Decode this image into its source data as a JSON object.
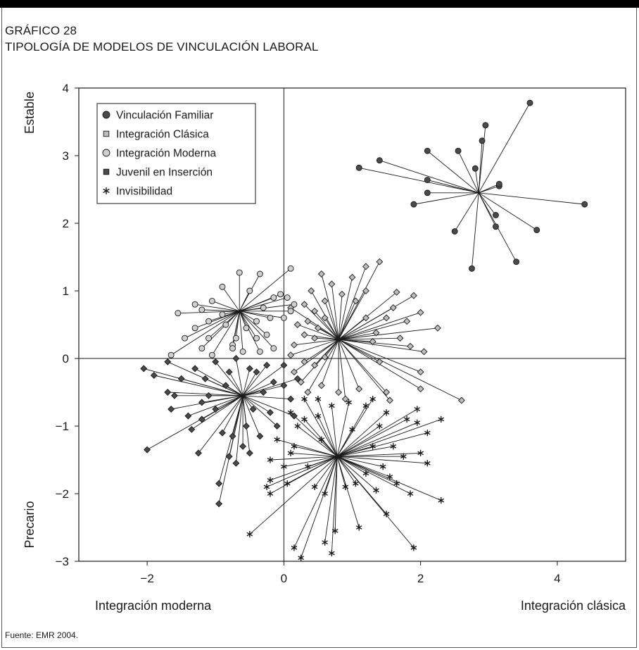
{
  "header": {
    "label": "GRÁFICO 28",
    "title": "TIPOLOGÍA DE MODELOS DE VINCULACIÓN LABORAL"
  },
  "source": "Fuente: EMR 2004.",
  "chart_data": {
    "type": "scatter",
    "title": "TIPOLOGÍA DE MODELOS DE VINCULACIÓN LABORAL",
    "xlabel_left": "Integración moderna",
    "xlabel_right": "Integración clásica",
    "ylabel_top": "Estable",
    "ylabel_bottom": "Precario",
    "xlim": [
      -3,
      5
    ],
    "ylim": [
      -3,
      4
    ],
    "xticks": [
      -2,
      0,
      2,
      4
    ],
    "xtick_labels": [
      "−2",
      "0",
      "2",
      "4"
    ],
    "yticks": [
      -3,
      -2,
      -1,
      0,
      1,
      2,
      3,
      4
    ],
    "ytick_labels": [
      "−3",
      "−2",
      "−1",
      "0",
      "1",
      "2",
      "3",
      "4"
    ],
    "reference_lines": {
      "x": 0,
      "y": 0
    },
    "legend_position": "top-left",
    "series": [
      {
        "name": "Vinculación Familiar",
        "marker": "circle",
        "fill": "#4a4a4a",
        "centroid": [
          2.85,
          2.45
        ],
        "points": [
          [
            3.6,
            3.78
          ],
          [
            2.95,
            3.45
          ],
          [
            2.9,
            3.22
          ],
          [
            2.55,
            3.07
          ],
          [
            2.8,
            2.81
          ],
          [
            2.1,
            3.07
          ],
          [
            1.4,
            2.93
          ],
          [
            1.1,
            2.82
          ],
          [
            2.1,
            2.64
          ],
          [
            3.15,
            2.55
          ],
          [
            3.15,
            2.58
          ],
          [
            2.1,
            2.45
          ],
          [
            1.9,
            2.28
          ],
          [
            4.4,
            2.28
          ],
          [
            3.1,
            2.12
          ],
          [
            3.1,
            1.95
          ],
          [
            3.7,
            1.9
          ],
          [
            2.5,
            1.88
          ],
          [
            3.4,
            1.43
          ],
          [
            2.75,
            1.33
          ]
        ]
      },
      {
        "name": "Integración Clásica",
        "marker": "square",
        "fill": "#bdbdbd",
        "centroid": [
          0.8,
          0.28
        ],
        "points": [
          [
            1.4,
            1.43
          ],
          [
            1.2,
            1.36
          ],
          [
            0.55,
            1.25
          ],
          [
            0.7,
            1.1
          ],
          [
            1.0,
            1.2
          ],
          [
            1.2,
            1.0
          ],
          [
            1.65,
            0.98
          ],
          [
            1.9,
            0.93
          ],
          [
            0.4,
            1.0
          ],
          [
            0.3,
            0.8
          ],
          [
            0.45,
            0.7
          ],
          [
            0.6,
            0.85
          ],
          [
            0.1,
            0.75
          ],
          [
            1.05,
            0.85
          ],
          [
            1.6,
            0.75
          ],
          [
            1.5,
            0.6
          ],
          [
            1.8,
            0.55
          ],
          [
            2.0,
            0.68
          ],
          [
            2.25,
            0.45
          ],
          [
            1.35,
            0.38
          ],
          [
            0.5,
            0.45
          ],
          [
            0.3,
            0.35
          ],
          [
            0.15,
            0.2
          ],
          [
            0.35,
            0.55
          ],
          [
            0.6,
            0.6
          ],
          [
            1.3,
            0.25
          ],
          [
            1.85,
            0.18
          ],
          [
            2.05,
            0.1
          ],
          [
            0.1,
            0.05
          ],
          [
            0.3,
            -0.05
          ],
          [
            0.45,
            -0.1
          ],
          [
            0.25,
            -0.35
          ],
          [
            0.55,
            -0.4
          ],
          [
            0.8,
            -0.5
          ],
          [
            1.1,
            -0.45
          ],
          [
            1.5,
            -0.5
          ],
          [
            1.55,
            -0.62
          ],
          [
            2.0,
            -0.2
          ],
          [
            2.0,
            -0.45
          ],
          [
            2.6,
            -0.62
          ],
          [
            0.9,
            -0.6
          ],
          [
            0.35,
            -0.5
          ],
          [
            1.4,
            -0.05
          ],
          [
            0.6,
            0.02
          ],
          [
            0.15,
            -0.2
          ],
          [
            1.7,
            0.3
          ],
          [
            0.85,
            0.95
          ],
          [
            0.45,
            0.3
          ],
          [
            0.2,
            0.5
          ],
          [
            1.2,
            0.6
          ]
        ]
      },
      {
        "name": "Integración Moderna",
        "marker": "circle",
        "fill": "#cfcfcf",
        "centroid": [
          -0.65,
          0.7
        ],
        "points": [
          [
            -0.65,
            1.27
          ],
          [
            -0.35,
            1.25
          ],
          [
            -0.9,
            1.06
          ],
          [
            -0.5,
            1.0
          ],
          [
            0.1,
            1.33
          ],
          [
            -1.3,
            0.8
          ],
          [
            -1.2,
            0.72
          ],
          [
            -1.05,
            0.85
          ],
          [
            -1.55,
            0.67
          ],
          [
            -1.1,
            0.55
          ],
          [
            -0.85,
            0.5
          ],
          [
            -0.4,
            0.55
          ],
          [
            -0.2,
            0.6
          ],
          [
            0.0,
            0.6
          ],
          [
            -1.3,
            0.45
          ],
          [
            -1.1,
            0.3
          ],
          [
            -0.7,
            0.3
          ],
          [
            -0.4,
            0.3
          ],
          [
            -0.25,
            0.35
          ],
          [
            -1.2,
            0.15
          ],
          [
            -1.05,
            0.05
          ],
          [
            -0.75,
            0.2
          ],
          [
            -0.75,
            0.15
          ],
          [
            -0.6,
            0.1
          ],
          [
            -0.35,
            0.1
          ],
          [
            -0.15,
            0.15
          ],
          [
            -1.65,
            0.05
          ],
          [
            -0.05,
            0.95
          ],
          [
            0.05,
            0.9
          ],
          [
            0.15,
            0.8
          ],
          [
            -0.15,
            0.9
          ],
          [
            -0.3,
            0.75
          ],
          [
            0.1,
            0.7
          ],
          [
            -0.9,
            0.65
          ],
          [
            -1.45,
            0.3
          ],
          [
            -0.55,
            0.45
          ]
        ]
      },
      {
        "name": "Juvenil en Inserción",
        "marker": "square",
        "fill": "#4a4a4a",
        "centroid": [
          -0.6,
          -0.55
        ],
        "points": [
          [
            -2.0,
            -1.35
          ],
          [
            -1.9,
            -0.25
          ],
          [
            -1.7,
            -0.05
          ],
          [
            -1.65,
            -0.75
          ],
          [
            -1.6,
            -0.55
          ],
          [
            -1.5,
            -0.3
          ],
          [
            -1.4,
            -0.85
          ],
          [
            -1.35,
            -1.05
          ],
          [
            -1.25,
            -1.4
          ],
          [
            -1.2,
            -0.9
          ],
          [
            -1.15,
            -0.3
          ],
          [
            -1.1,
            -0.55
          ],
          [
            -1.0,
            -0.75
          ],
          [
            -0.95,
            -1.85
          ],
          [
            -0.95,
            -2.15
          ],
          [
            -0.9,
            -1.1
          ],
          [
            -0.85,
            -0.4
          ],
          [
            -0.8,
            -1.45
          ],
          [
            -0.75,
            -1.15
          ],
          [
            -0.7,
            -1.55
          ],
          [
            -0.6,
            -1.3
          ],
          [
            -0.55,
            -1.0
          ],
          [
            -0.5,
            -1.4
          ],
          [
            -0.45,
            -0.75
          ],
          [
            -0.4,
            -0.2
          ],
          [
            -0.3,
            -0.5
          ],
          [
            -0.2,
            -0.8
          ],
          [
            -0.1,
            -1.0
          ],
          [
            0.0,
            -0.4
          ],
          [
            0.0,
            -0.1
          ],
          [
            0.1,
            -0.6
          ],
          [
            0.2,
            -0.3
          ],
          [
            -0.25,
            -0.1
          ],
          [
            -0.7,
            0.0
          ],
          [
            -1.0,
            -0.05
          ],
          [
            -1.3,
            -0.15
          ],
          [
            -2.05,
            -0.15
          ],
          [
            -1.7,
            -0.5
          ],
          [
            -0.15,
            -0.35
          ],
          [
            0.15,
            -0.85
          ],
          [
            -0.35,
            -1.15
          ],
          [
            -0.8,
            -0.2
          ],
          [
            -1.2,
            -0.65
          ],
          [
            -0.5,
            -0.15
          ]
        ]
      },
      {
        "name": "Invisibilidad",
        "marker": "asterisk",
        "fill": "#1a1a1a",
        "centroid": [
          0.78,
          -1.45
        ],
        "points": [
          [
            -0.5,
            -2.6
          ],
          [
            0.15,
            -2.8
          ],
          [
            0.25,
            -2.95
          ],
          [
            0.6,
            -2.72
          ],
          [
            0.7,
            -2.88
          ],
          [
            0.75,
            -2.55
          ],
          [
            1.1,
            -2.5
          ],
          [
            1.5,
            -2.3
          ],
          [
            1.9,
            -2.8
          ],
          [
            2.3,
            -2.1
          ],
          [
            1.85,
            -2.0
          ],
          [
            2.3,
            -0.9
          ],
          [
            2.1,
            -1.1
          ],
          [
            1.95,
            -0.75
          ],
          [
            1.8,
            -0.9
          ],
          [
            1.6,
            -1.3
          ],
          [
            1.5,
            -0.8
          ],
          [
            1.4,
            -1.0
          ],
          [
            1.2,
            -0.7
          ],
          [
            1.3,
            -0.6
          ],
          [
            0.95,
            -0.65
          ],
          [
            0.7,
            -0.7
          ],
          [
            0.5,
            -0.6
          ],
          [
            0.3,
            -0.9
          ],
          [
            0.1,
            -0.8
          ],
          [
            0.2,
            -1.0
          ],
          [
            -0.1,
            -1.2
          ],
          [
            -0.2,
            -1.5
          ],
          [
            -0.2,
            -1.8
          ],
          [
            -0.25,
            -1.9
          ],
          [
            -0.2,
            -2.0
          ],
          [
            0.0,
            -1.6
          ],
          [
            0.05,
            -1.85
          ],
          [
            0.15,
            -1.3
          ],
          [
            0.35,
            -1.6
          ],
          [
            0.45,
            -1.9
          ],
          [
            0.6,
            -2.0
          ],
          [
            0.9,
            -1.9
          ],
          [
            1.05,
            -1.85
          ],
          [
            1.2,
            -1.7
          ],
          [
            1.45,
            -1.6
          ],
          [
            1.55,
            -1.75
          ],
          [
            1.65,
            -1.85
          ],
          [
            2.0,
            -1.4
          ],
          [
            2.1,
            -1.55
          ],
          [
            1.95,
            -0.95
          ],
          [
            1.0,
            -1.05
          ],
          [
            0.55,
            -1.2
          ],
          [
            0.1,
            -1.4
          ],
          [
            1.3,
            -1.3
          ],
          [
            1.35,
            -1.95
          ],
          [
            1.75,
            -1.45
          ],
          [
            0.3,
            -0.6
          ],
          [
            0.5,
            -0.85
          ]
        ]
      }
    ]
  }
}
